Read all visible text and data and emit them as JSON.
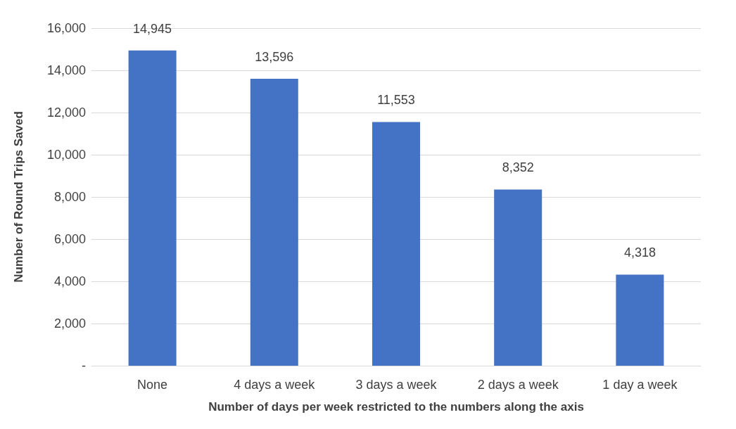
{
  "chart_data": {
    "type": "bar",
    "xlabel": "Number of days per week restricted to the numbers along the axis",
    "ylabel": "Number of Round Trips Saved",
    "categories": [
      "None",
      "4 days a week",
      "3 days a week",
      "2 days a week",
      "1 day a week"
    ],
    "values": [
      14945,
      13596,
      11553,
      8352,
      4318
    ],
    "value_labels": [
      "14,945",
      "13,596",
      "11,553",
      "8,352",
      "4,318"
    ],
    "color": "#4472c4",
    "ylim": [
      0,
      16000
    ],
    "yticks": [
      {
        "value": 0,
        "label": "-"
      },
      {
        "value": 2000,
        "label": "2,000"
      },
      {
        "value": 4000,
        "label": "4,000"
      },
      {
        "value": 6000,
        "label": "6,000"
      },
      {
        "value": 8000,
        "label": "8,000"
      },
      {
        "value": 10000,
        "label": "10,000"
      },
      {
        "value": 12000,
        "label": "12,000"
      },
      {
        "value": 14000,
        "label": "14,000"
      },
      {
        "value": 16000,
        "label": "16,000"
      }
    ],
    "grid": "y"
  }
}
